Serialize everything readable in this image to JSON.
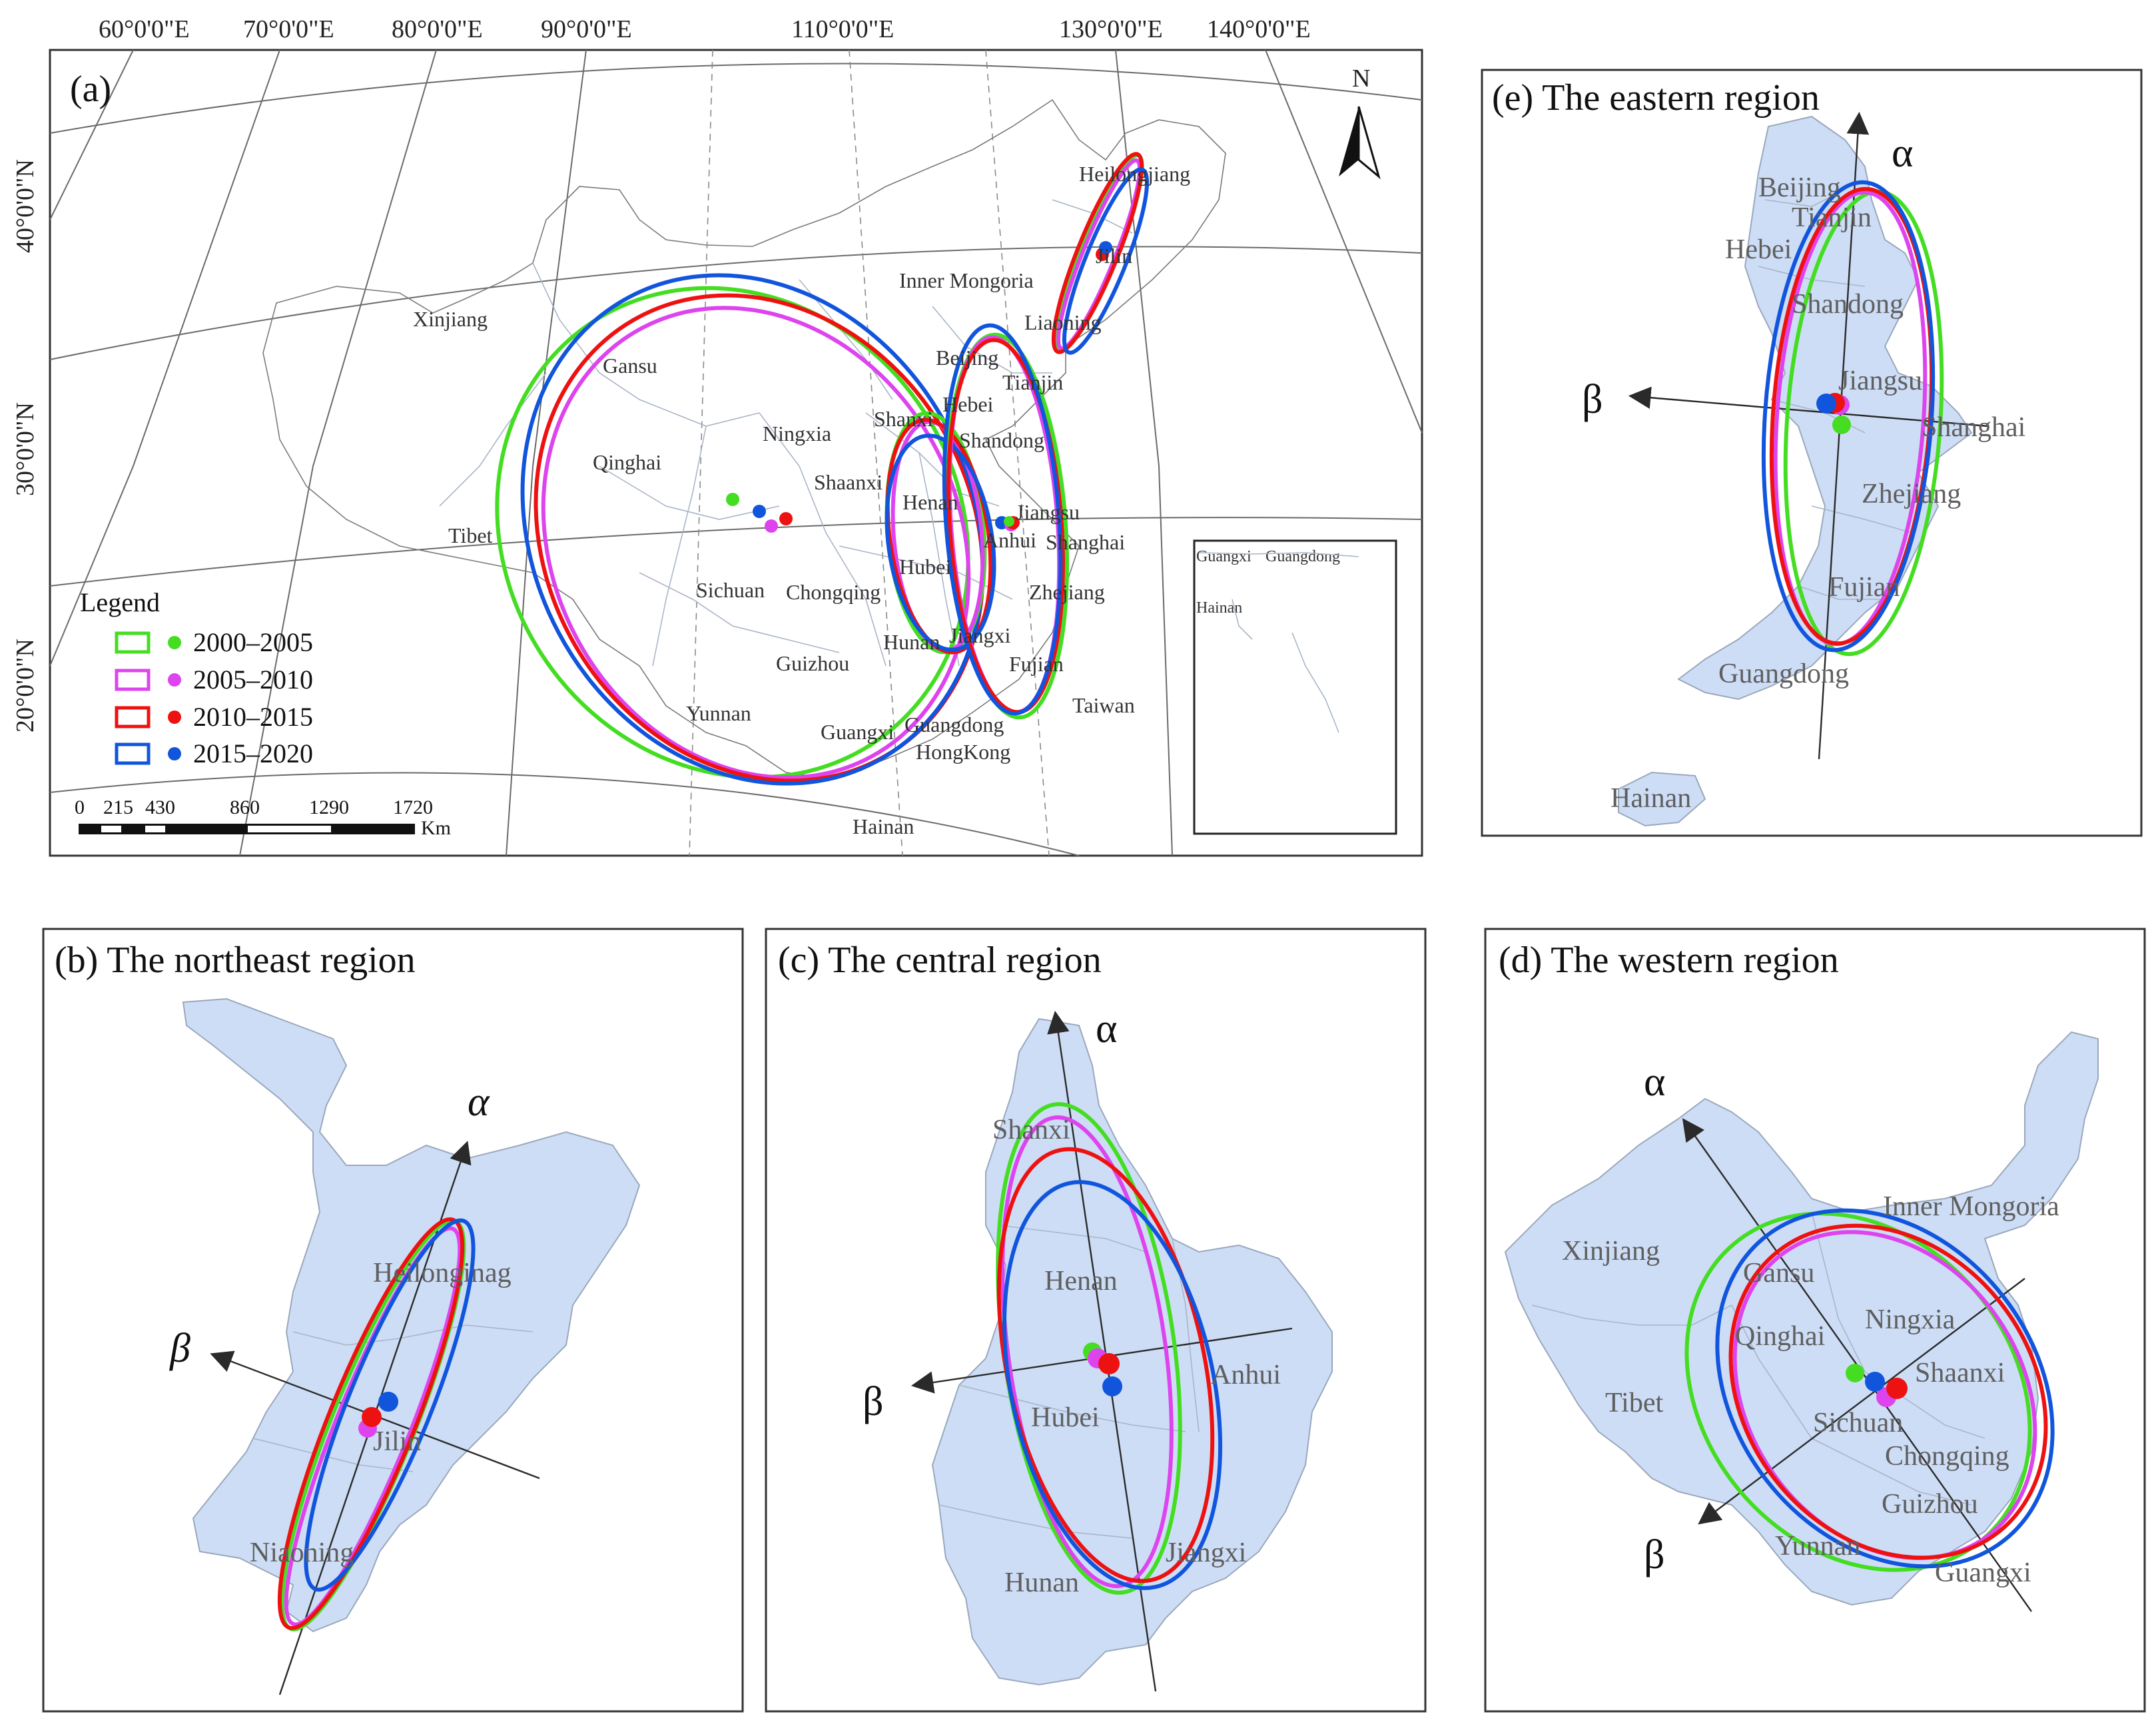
{
  "colors": {
    "p2000": "#44dd22",
    "p2005": "#dd44ee",
    "p2010": "#ee1111",
    "p2015": "#1155dd",
    "land": "#cdddf6"
  },
  "coords": {
    "lon": [
      "60°0'0\"E",
      "70°0'0\"E",
      "80°0'0\"E",
      "90°0'0\"E",
      "110°0'0\"E",
      "130°0'0\"E",
      "140°0'0\"E"
    ],
    "lat": [
      "40°0'0\"N",
      "30°0'0\"N",
      "20°0'0\"N"
    ]
  },
  "panel_a": {
    "tag": "(a)",
    "north": "N",
    "legend_title": "Legend",
    "legend": [
      "2000–2005",
      "2005–2010",
      "2010–2015",
      "2015–2020"
    ],
    "scale_ticks": [
      "0",
      "215",
      "430",
      "860",
      "1290",
      "1720"
    ],
    "scale_unit": "Km",
    "labels": {
      "xinjiang": "Xinjiang",
      "gansu": "Gansu",
      "qinghai": "Qinghai",
      "tibet": "Tibet",
      "ningxia": "Ningxia",
      "shaanxi": "Shaanxi",
      "sichuan": "Sichuan",
      "chongqing": "Chongqing",
      "guizhou": "Guizhou",
      "yunnan": "Yunnan",
      "guangxi": "Guangxi",
      "guangdong": "Guangdong",
      "hongkong": "HongKong",
      "hainan": "Hainan",
      "taiwan": "Taiwan",
      "fujian": "Fujian",
      "jiangxi": "Jiangxi",
      "hunan": "Hunan",
      "hubei": "Hubei",
      "henan": "Henan",
      "anhui": "Anhui",
      "jiangsu": "Jiangsu",
      "shanghai": "Shanghai",
      "zhejiang": "Zhejiang",
      "shandong": "Shandong",
      "shanxi": "Shanxi",
      "hebei": "Hebei",
      "beijing": "Beijing",
      "tianjin": "Tianjin",
      "liaoning": "Liaoning",
      "jilin": "Jilin",
      "heilongjiang": "Heilongjiang",
      "innermongoria": "Inner Mongoria"
    },
    "inset": {
      "guangxi": "Guangxi",
      "guangdong": "Guangdong",
      "hainan": "Hainan"
    }
  },
  "panel_b": {
    "title": "(b) The northeast region",
    "alpha": "α",
    "beta": "β",
    "labels": {
      "heilongjiang": "Heilonginag",
      "jilin": "Jilin",
      "liaoning": "Niaoning"
    }
  },
  "panel_c": {
    "title": "(c) The central region",
    "alpha": "α",
    "beta": "β",
    "labels": {
      "shanxi": "Shanxi",
      "henan": "Henan",
      "anhui": "Anhui",
      "hubei": "Hubei",
      "hunan": "Hunan",
      "jiangxi": "Jiangxi"
    }
  },
  "panel_d": {
    "title": "(d) The western region",
    "alpha": "α",
    "beta": "β",
    "labels": {
      "xinjiang": "Xinjiang",
      "tibet": "Tibet",
      "gansu": "Gansu",
      "qinghai": "Qinghai",
      "ningxia": "Ningxia",
      "shaanxi": "Shaanxi",
      "innermongoria": "Inner Mongoria",
      "sichuan": "Sichuan",
      "chongqing": "Chongqing",
      "guizhou": "Guizhou",
      "yunnan": "Yunnan",
      "guangxi": "Guangxi"
    }
  },
  "panel_e": {
    "title": "(e) The eastern region",
    "alpha": "α",
    "beta": "β",
    "labels": {
      "beijing": "Beijing",
      "tianjin": "Tianjin",
      "hebei": "Hebei",
      "shandong": "Shandong",
      "jiangsu": "Jiangsu",
      "shanghai": "Shanghai",
      "zhejiang": "Zhejiang",
      "fujian": "Fujian",
      "guangdong": "Guangdong",
      "hainan": "Hainan"
    }
  }
}
